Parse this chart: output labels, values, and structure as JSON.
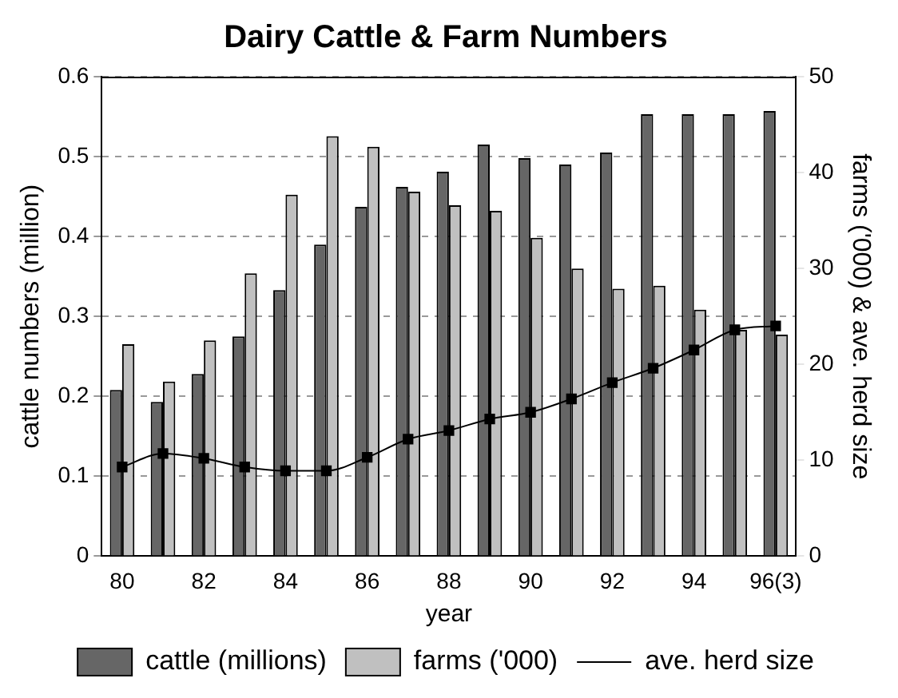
{
  "chart_data": {
    "type": "bar",
    "title": "Dairy Cattle & Farm Numbers",
    "xlabel": "year",
    "ylabel": "cattle numbers (million)",
    "y2label": "farms ('000) & ave. herd size",
    "categories": [
      "80",
      null,
      "82",
      null,
      "84",
      null,
      "86",
      null,
      "88",
      null,
      "90",
      null,
      "92",
      null,
      "94",
      null,
      "96(3)"
    ],
    "series": [
      {
        "name": "cattle (millions)",
        "color": "#666666",
        "values": [
          0.208,
          0.193,
          0.228,
          0.275,
          0.333,
          0.39,
          0.437,
          0.462,
          0.481,
          0.515,
          0.498,
          0.49,
          0.505,
          0.553,
          0.553,
          0.553,
          0.557
        ]
      },
      {
        "name": "farms ('000)",
        "type": "bar",
        "axis": "y2",
        "color": "#c0c0c0",
        "values": [
          22.1,
          18.2,
          22.5,
          29.5,
          37.7,
          43.8,
          42.7,
          38.0,
          36.6,
          36.0,
          33.2,
          30.0,
          27.9,
          28.2,
          25.7,
          23.6,
          23.1
        ]
      },
      {
        "name": "ave. herd size",
        "type": "line",
        "axis": "y2",
        "color": "#000000",
        "values": [
          9.3,
          10.7,
          10.2,
          9.3,
          8.9,
          8.9,
          10.3,
          12.2,
          13.1,
          14.3,
          15.0,
          16.4,
          18.1,
          19.6,
          21.5,
          23.6,
          24.0
        ]
      }
    ],
    "ylim": [
      0,
      0.6
    ],
    "yticks": [
      0,
      0.1,
      0.2,
      0.3,
      0.4,
      0.5,
      0.6
    ],
    "y2lim": [
      0,
      50
    ],
    "y2ticks": [
      0,
      10,
      20,
      30,
      40,
      50
    ],
    "grid": "y",
    "legend": "bottom",
    "marker": "square",
    "line_style": "solid"
  }
}
